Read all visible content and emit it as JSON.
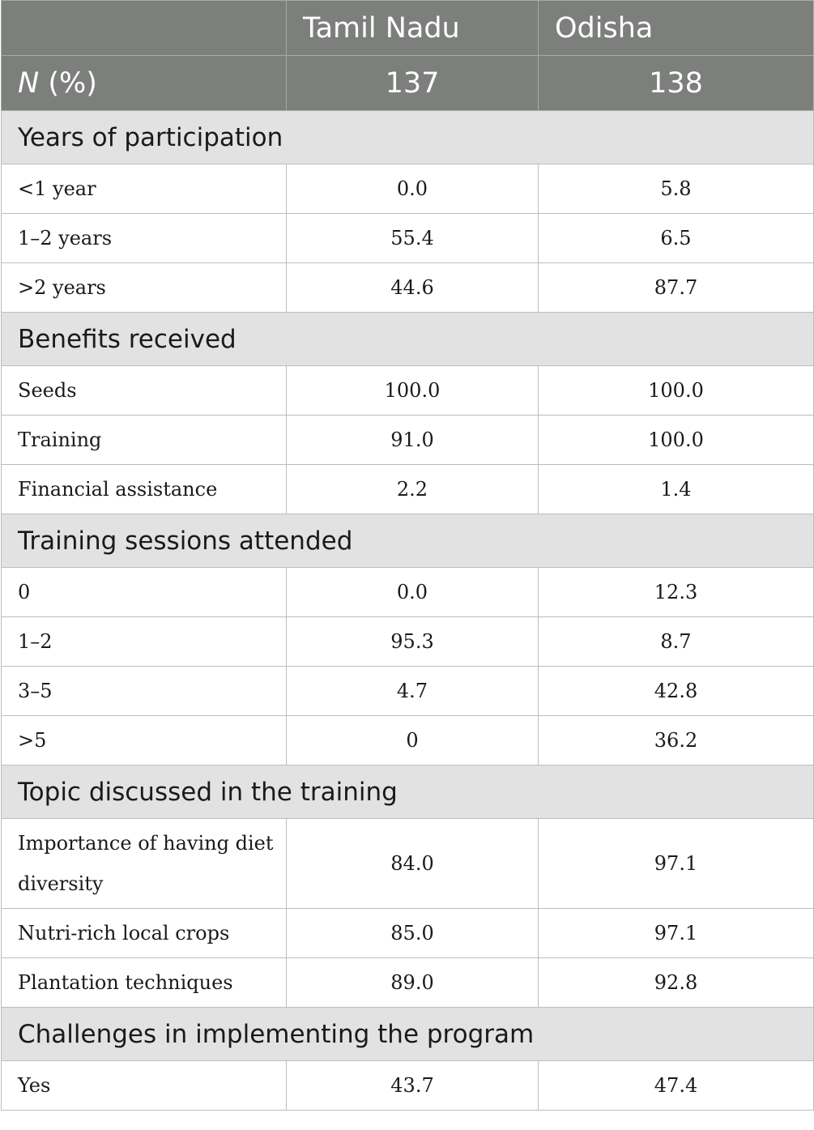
{
  "header": {
    "col1": "",
    "col2": "Tamil Nadu",
    "col3": "Odisha",
    "n_label_italic": "N",
    "n_label_rest": " (%)",
    "n_tamil_nadu": "137",
    "n_odisha": "138"
  },
  "sections": [
    {
      "title": "Years of participation",
      "rows": [
        {
          "label": "<1 year",
          "tn": "0.0",
          "od": "5.8"
        },
        {
          "label": "1–2 years",
          "tn": "55.4",
          "od": "6.5"
        },
        {
          "label": ">2 years",
          "tn": "44.6",
          "od": "87.7"
        }
      ]
    },
    {
      "title": "Benefits received",
      "rows": [
        {
          "label": "Seeds",
          "tn": "100.0",
          "od": "100.0"
        },
        {
          "label": "Training",
          "tn": "91.0",
          "od": "100.0"
        },
        {
          "label": "Financial assistance",
          "tn": "2.2",
          "od": "1.4"
        }
      ]
    },
    {
      "title": "Training sessions attended",
      "rows": [
        {
          "label": "0",
          "tn": "0.0",
          "od": "12.3"
        },
        {
          "label": "1–2",
          "tn": "95.3",
          "od": "8.7"
        },
        {
          "label": "3–5",
          "tn": "4.7",
          "od": "42.8"
        },
        {
          "label": ">5",
          "tn": "0",
          "od": "36.2"
        }
      ]
    },
    {
      "title": "Topic discussed in the training",
      "rows": [
        {
          "label": "Importance of having diet diversity",
          "tn": "84.0",
          "od": "97.1"
        },
        {
          "label": "Nutri-rich local crops",
          "tn": "85.0",
          "od": "97.1"
        },
        {
          "label": "Plantation techniques",
          "tn": "89.0",
          "od": "92.8"
        }
      ]
    },
    {
      "title": "Challenges in implementing the program",
      "rows": [
        {
          "label": "Yes",
          "tn": "43.7",
          "od": "47.4"
        }
      ]
    }
  ]
}
